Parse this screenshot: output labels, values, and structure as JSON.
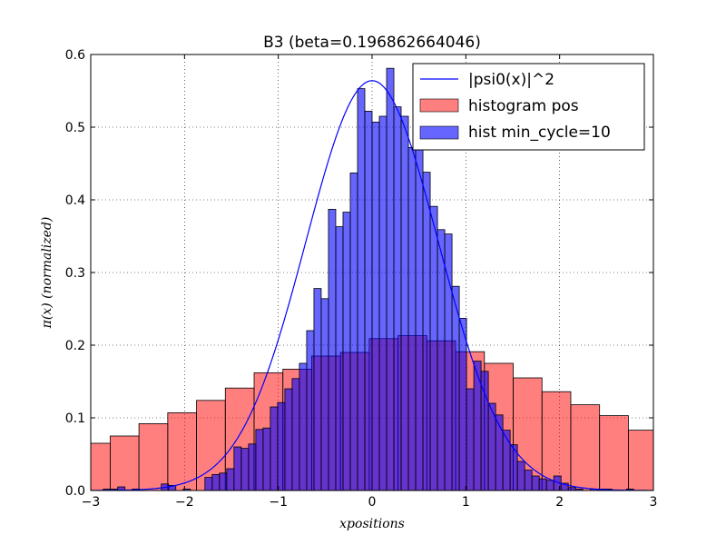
{
  "chart_data": {
    "type": "bar",
    "title": "B3 (beta=0.196862664046)",
    "xlabel": "xpositions",
    "ylabel": "π(x) (normalized)",
    "xlim": [
      -3,
      3
    ],
    "ylim": [
      0,
      0.6
    ],
    "xticks": [
      -3,
      -2,
      -1,
      0,
      1,
      2,
      3
    ],
    "xtick_labels": [
      "−3",
      "−2",
      "−1",
      "0",
      "1",
      "2",
      "3"
    ],
    "yticks": [
      0.0,
      0.1,
      0.2,
      0.3,
      0.4,
      0.5,
      0.6
    ],
    "ytick_labels": [
      "0.0",
      "0.1",
      "0.2",
      "0.3",
      "0.4",
      "0.5",
      "0.6"
    ],
    "grid": true,
    "legend_position": "top-right",
    "series": [
      {
        "name": "histogram pos",
        "kind": "histogram",
        "color": "#ff0000",
        "alpha": 0.5,
        "bin_start": -3.1,
        "bin_width": 0.307,
        "values": [
          0.065,
          0.075,
          0.092,
          0.107,
          0.124,
          0.141,
          0.162,
          0.167,
          0.185,
          0.19,
          0.209,
          0.213,
          0.206,
          0.191,
          0.175,
          0.155,
          0.136,
          0.118,
          0.103,
          0.083,
          0.07,
          0.061
        ]
      },
      {
        "name": "hist min_cycle=10",
        "kind": "histogram",
        "color": "#0000ff",
        "alpha": 0.6,
        "bin_start": -3.1,
        "bin_width": 0.0775,
        "values": [
          0.0,
          0.0,
          0.0,
          0.002,
          0.002,
          0.005,
          0.0,
          0.002,
          0.0,
          0.0,
          0.0,
          0.009,
          0.007,
          0.0,
          0.002,
          0.0,
          0.0,
          0.018,
          0.022,
          0.024,
          0.03,
          0.06,
          0.058,
          0.064,
          0.084,
          0.086,
          0.115,
          0.121,
          0.14,
          0.154,
          0.175,
          0.22,
          0.278,
          0.264,
          0.387,
          0.363,
          0.383,
          0.437,
          0.553,
          0.522,
          0.507,
          0.515,
          0.581,
          0.528,
          0.515,
          0.472,
          0.492,
          0.438,
          0.391,
          0.359,
          0.353,
          0.281,
          0.237,
          0.14,
          0.178,
          0.164,
          0.12,
          0.104,
          0.083,
          0.063,
          0.04,
          0.028,
          0.02,
          0.016,
          0.014,
          0.02,
          0.01,
          0.004,
          0.002,
          0.0,
          0.002,
          0.002,
          0.002,
          0.0,
          0.0,
          0.002,
          0.0,
          0.0,
          0.0
        ]
      },
      {
        "name": "|psi0(x)|^2",
        "kind": "line",
        "color": "#0000ff",
        "function": "gaussian",
        "peak": 0.564,
        "sigma": 0.707
      }
    ]
  }
}
